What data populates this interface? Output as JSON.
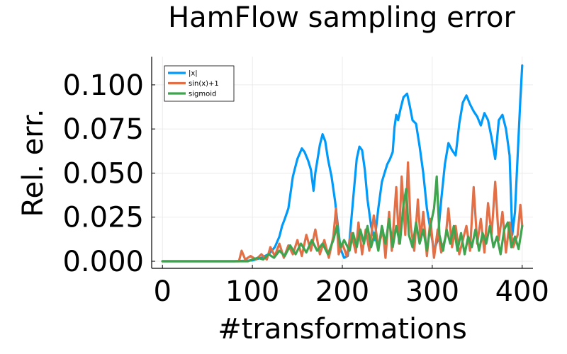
{
  "chart_data": {
    "type": "line",
    "title": "HamFlow sampling error",
    "xlabel": "#transformations",
    "ylabel": "Rel. err.",
    "xlim": [
      -12,
      412
    ],
    "ylim": [
      -0.004,
      0.116
    ],
    "xticks": [
      0,
      100,
      200,
      300,
      400
    ],
    "xtick_labels": [
      "0",
      "100",
      "200",
      "300",
      "400"
    ],
    "yticks": [
      0.0,
      0.025,
      0.05,
      0.075,
      0.1
    ],
    "ytick_labels": [
      "0.000",
      "0.025",
      "0.050",
      "0.075",
      "0.100"
    ],
    "grid": true,
    "legend_position": "top-left",
    "series": [
      {
        "name": "|x|",
        "color": "#009AFA",
        "points": [
          [
            0,
            0
          ],
          [
            80,
            0
          ],
          [
            100,
            0.0005
          ],
          [
            110,
            0.002
          ],
          [
            118,
            0.004
          ],
          [
            125,
            0.008
          ],
          [
            130,
            0.014
          ],
          [
            133,
            0.02
          ],
          [
            136,
            0.024
          ],
          [
            140,
            0.03
          ],
          [
            145,
            0.048
          ],
          [
            150,
            0.058
          ],
          [
            155,
            0.064
          ],
          [
            158,
            0.062
          ],
          [
            162,
            0.057
          ],
          [
            165,
            0.052
          ],
          [
            168,
            0.04
          ],
          [
            170,
            0.05
          ],
          [
            175,
            0.066
          ],
          [
            178,
            0.072
          ],
          [
            181,
            0.068
          ],
          [
            184,
            0.058
          ],
          [
            188,
            0.048
          ],
          [
            192,
            0.034
          ],
          [
            195,
            0.02
          ],
          [
            198,
            0.007
          ],
          [
            202,
            0.002
          ],
          [
            206,
            0.003
          ],
          [
            208,
            0.012
          ],
          [
            212,
            0.035
          ],
          [
            216,
            0.058
          ],
          [
            219,
            0.065
          ],
          [
            222,
            0.063
          ],
          [
            225,
            0.052
          ],
          [
            228,
            0.035
          ],
          [
            232,
            0.02
          ],
          [
            236,
            0.012
          ],
          [
            240,
            0.03
          ],
          [
            244,
            0.045
          ],
          [
            247,
            0.05
          ],
          [
            250,
            0.055
          ],
          [
            253,
            0.058
          ],
          [
            256,
            0.062
          ],
          [
            258,
            0.076
          ],
          [
            260,
            0.083
          ],
          [
            262,
            0.08
          ],
          [
            265,
            0.087
          ],
          [
            268,
            0.093
          ],
          [
            272,
            0.095
          ],
          [
            275,
            0.088
          ],
          [
            278,
            0.08
          ],
          [
            282,
            0.078
          ],
          [
            286,
            0.065
          ],
          [
            290,
            0.05
          ],
          [
            294,
            0.03
          ],
          [
            298,
            0.018
          ],
          [
            302,
            0.006
          ],
          [
            306,
            0.012
          ],
          [
            310,
            0.035
          ],
          [
            314,
            0.055
          ],
          [
            318,
            0.067
          ],
          [
            322,
            0.063
          ],
          [
            326,
            0.06
          ],
          [
            330,
            0.078
          ],
          [
            334,
            0.09
          ],
          [
            338,
            0.094
          ],
          [
            342,
            0.089
          ],
          [
            346,
            0.085
          ],
          [
            350,
            0.082
          ],
          [
            354,
            0.077
          ],
          [
            358,
            0.084
          ],
          [
            362,
            0.08
          ],
          [
            366,
            0.07
          ],
          [
            370,
            0.058
          ],
          [
            374,
            0.08
          ],
          [
            378,
            0.083
          ],
          [
            382,
            0.075
          ],
          [
            386,
            0.06
          ],
          [
            389,
            0.015
          ],
          [
            392,
            0.028
          ],
          [
            395,
            0.06
          ],
          [
            398,
            0.092
          ],
          [
            400,
            0.111
          ]
        ]
      },
      {
        "name": "sin(x)+1",
        "color": "#E26F46",
        "points": [
          [
            0,
            0
          ],
          [
            85,
            0
          ],
          [
            88,
            0.006
          ],
          [
            92,
            0.001
          ],
          [
            98,
            0.003
          ],
          [
            104,
            0.001
          ],
          [
            110,
            0.004
          ],
          [
            116,
            0.001
          ],
          [
            120,
            0.008
          ],
          [
            125,
            0.003
          ],
          [
            130,
            0.01
          ],
          [
            135,
            0.002
          ],
          [
            140,
            0.009
          ],
          [
            145,
            0.004
          ],
          [
            150,
            0.012
          ],
          [
            155,
            0.003
          ],
          [
            160,
            0.015
          ],
          [
            165,
            0.006
          ],
          [
            170,
            0.018
          ],
          [
            175,
            0.004
          ],
          [
            180,
            0.012
          ],
          [
            185,
            0.002
          ],
          [
            190,
            0.014
          ],
          [
            193,
            0.03
          ],
          [
            196,
            0.004
          ],
          [
            200,
            0.01
          ],
          [
            205,
            0.003
          ],
          [
            210,
            0.016
          ],
          [
            215,
            0.005
          ],
          [
            218,
            0.022
          ],
          [
            222,
            0.004
          ],
          [
            226,
            0.018
          ],
          [
            230,
            0.006
          ],
          [
            235,
            0.026
          ],
          [
            240,
            0.008
          ],
          [
            245,
            0.018
          ],
          [
            248,
            0.002
          ],
          [
            252,
            0.028
          ],
          [
            255,
            0.006
          ],
          [
            260,
            0.042
          ],
          [
            263,
            0.01
          ],
          [
            266,
            0.048
          ],
          [
            270,
            0.015
          ],
          [
            273,
            0.056
          ],
          [
            276,
            0.02
          ],
          [
            280,
            0.006
          ],
          [
            284,
            0.035
          ],
          [
            287,
            0.012
          ],
          [
            290,
            0.028
          ],
          [
            294,
            0.003
          ],
          [
            298,
            0.024
          ],
          [
            302,
            0.002
          ],
          [
            306,
            0.018
          ],
          [
            310,
            0.005
          ],
          [
            315,
            0.014
          ],
          [
            318,
            0.03
          ],
          [
            322,
            0.008
          ],
          [
            326,
            0.02
          ],
          [
            330,
            0.004
          ],
          [
            334,
            0.012
          ],
          [
            338,
            0.02
          ],
          [
            342,
            0.006
          ],
          [
            346,
            0.042
          ],
          [
            350,
            0.01
          ],
          [
            354,
            0.024
          ],
          [
            358,
            0.005
          ],
          [
            362,
            0.033
          ],
          [
            366,
            0.015
          ],
          [
            370,
            0.045
          ],
          [
            374,
            0.012
          ],
          [
            378,
            0.028
          ],
          [
            382,
            0.005
          ],
          [
            386,
            0.022
          ],
          [
            390,
            0.008
          ],
          [
            395,
            0.015
          ],
          [
            398,
            0.032
          ],
          [
            400,
            0.02
          ]
        ]
      },
      {
        "name": "sigmoid",
        "color": "#3EA44E",
        "points": [
          [
            0,
            0
          ],
          [
            95,
            0
          ],
          [
            100,
            0.001
          ],
          [
            106,
            0.002
          ],
          [
            112,
            0.001
          ],
          [
            118,
            0.004
          ],
          [
            124,
            0.002
          ],
          [
            130,
            0.006
          ],
          [
            136,
            0.003
          ],
          [
            142,
            0.009
          ],
          [
            148,
            0.004
          ],
          [
            154,
            0.01
          ],
          [
            160,
            0.005
          ],
          [
            166,
            0.012
          ],
          [
            172,
            0.006
          ],
          [
            178,
            0.01
          ],
          [
            184,
            0.004
          ],
          [
            190,
            0.012
          ],
          [
            194,
            0.02
          ],
          [
            198,
            0.008
          ],
          [
            202,
            0.012
          ],
          [
            208,
            0.006
          ],
          [
            212,
            0.016
          ],
          [
            216,
            0.008
          ],
          [
            220,
            0.018
          ],
          [
            224,
            0.01
          ],
          [
            228,
            0.02
          ],
          [
            232,
            0.008
          ],
          [
            236,
            0.016
          ],
          [
            240,
            0.006
          ],
          [
            244,
            0.02
          ],
          [
            248,
            0.01
          ],
          [
            252,
            0.024
          ],
          [
            256,
            0.008
          ],
          [
            260,
            0.02
          ],
          [
            264,
            0.01
          ],
          [
            268,
            0.032
          ],
          [
            271,
            0.041
          ],
          [
            274,
            0.015
          ],
          [
            278,
            0.008
          ],
          [
            282,
            0.022
          ],
          [
            286,
            0.01
          ],
          [
            290,
            0.018
          ],
          [
            294,
            0.006
          ],
          [
            298,
            0.02
          ],
          [
            302,
            0.03
          ],
          [
            305,
            0.048
          ],
          [
            308,
            0.015
          ],
          [
            312,
            0.006
          ],
          [
            316,
            0.018
          ],
          [
            320,
            0.01
          ],
          [
            324,
            0.02
          ],
          [
            328,
            0.006
          ],
          [
            332,
            0.016
          ],
          [
            336,
            0.004
          ],
          [
            340,
            0.014
          ],
          [
            344,
            0.008
          ],
          [
            348,
            0.018
          ],
          [
            352,
            0.006
          ],
          [
            356,
            0.016
          ],
          [
            360,
            0.01
          ],
          [
            364,
            0.02
          ],
          [
            368,
            0.008
          ],
          [
            372,
            0.014
          ],
          [
            376,
            0.004
          ],
          [
            380,
            0.018
          ],
          [
            384,
            0.022
          ],
          [
            388,
            0.008
          ],
          [
            392,
            0.014
          ],
          [
            396,
            0.007
          ],
          [
            400,
            0.02
          ]
        ]
      }
    ]
  }
}
